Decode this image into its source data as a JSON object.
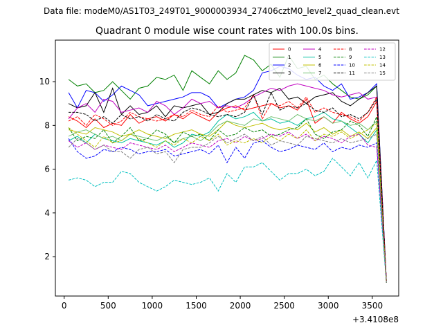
{
  "figure": {
    "suptitle": "Data file: modeM0/AS1T03_249T01_9000003934_27406cztM0_level2_quad_clean.evt"
  },
  "chart_data": {
    "type": "line",
    "title": "Quadrant 0 module wise count rates with 100.0s bins.",
    "xlabel": "",
    "ylabel": "",
    "x_offset_label": "+3.4108e8",
    "xlim": [
      -100,
      3800
    ],
    "ylim": [
      0.2,
      11.9
    ],
    "xticks": [
      0,
      500,
      1000,
      1500,
      2000,
      2500,
      3000,
      3500
    ],
    "yticks": [
      2,
      4,
      6,
      8,
      10
    ],
    "grid": false,
    "legend_position": "top-right",
    "legend_columns": 4,
    "x": [
      50,
      150,
      250,
      350,
      450,
      550,
      650,
      750,
      850,
      950,
      1050,
      1150,
      1250,
      1350,
      1450,
      1550,
      1650,
      1750,
      1850,
      1950,
      2050,
      2150,
      2250,
      2350,
      2450,
      2550,
      2650,
      2750,
      2850,
      2950,
      3050,
      3150,
      3250,
      3350,
      3450,
      3550,
      3660
    ],
    "series": [
      {
        "name": "0",
        "color": "#ff0000",
        "dash": "solid",
        "values": [
          8.4,
          8.2,
          7.9,
          8.3,
          7.9,
          8.1,
          8.0,
          8.5,
          8.1,
          8.3,
          8.4,
          8.2,
          8.5,
          8.3,
          8.6,
          8.4,
          8.2,
          8.6,
          8.8,
          8.9,
          8.7,
          8.8,
          8.9,
          9.0,
          8.8,
          8.9,
          8.7,
          9.2,
          8.1,
          8.4,
          8.1,
          8.6,
          8.3,
          8.1,
          8.4,
          9.1,
          0.9
        ]
      },
      {
        "name": "1",
        "color": "#008000",
        "dash": "solid",
        "values": [
          10.1,
          9.8,
          9.9,
          9.5,
          9.6,
          10.0,
          9.6,
          9.2,
          9.7,
          9.8,
          10.2,
          10.1,
          10.3,
          9.6,
          10.5,
          10.2,
          9.9,
          10.5,
          10.1,
          10.4,
          11.2,
          11.0,
          10.5,
          10.8,
          10.2,
          11.2,
          10.6,
          10.7,
          10.1,
          10.3,
          9.9,
          9.6,
          9.3,
          9.2,
          9.4,
          9.8,
          0.8
        ]
      },
      {
        "name": "2",
        "color": "#0000ff",
        "dash": "solid",
        "values": [
          9.5,
          8.8,
          9.6,
          9.5,
          9.1,
          9.4,
          9.8,
          9.6,
          9.4,
          8.9,
          9.0,
          9.1,
          9.2,
          9.3,
          9.5,
          9.5,
          9.3,
          8.8,
          9.0,
          9.2,
          9.3,
          9.6,
          10.4,
          10.5,
          10.7,
          10.6,
          10.3,
          10.1,
          10.2,
          9.8,
          9.6,
          9.9,
          9.2,
          9.3,
          9.5,
          9.9,
          0.9
        ]
      },
      {
        "name": "3",
        "color": "#000000",
        "dash": "solid",
        "values": [
          9.0,
          8.8,
          8.9,
          9.5,
          8.6,
          9.7,
          8.5,
          8.9,
          8.5,
          8.6,
          8.9,
          8.4,
          8.9,
          8.8,
          8.9,
          9.0,
          8.5,
          8.6,
          9.0,
          9.2,
          9.2,
          9.4,
          9.6,
          9.5,
          9.7,
          9.2,
          9.3,
          9.0,
          9.3,
          9.4,
          9.5,
          9.1,
          8.9,
          9.2,
          9.5,
          9.8,
          0.9
        ]
      },
      {
        "name": "4",
        "color": "#c000c0",
        "dash": "solid",
        "values": [
          8.3,
          8.8,
          9.0,
          8.6,
          9.2,
          9.1,
          8.6,
          8.7,
          8.8,
          8.6,
          9.1,
          8.9,
          8.5,
          8.8,
          9.2,
          9.0,
          9.1,
          8.8,
          8.9,
          8.8,
          9.0,
          9.3,
          9.5,
          9.7,
          9.6,
          9.8,
          9.9,
          9.8,
          9.7,
          9.6,
          9.4,
          9.3,
          9.4,
          9.5,
          9.2,
          9.3,
          0.9
        ]
      },
      {
        "name": "5",
        "color": "#00c0a0",
        "dash": "solid",
        "values": [
          7.3,
          7.5,
          7.2,
          7.6,
          7.4,
          7.3,
          7.2,
          7.4,
          7.3,
          7.2,
          7.1,
          7.3,
          7.0,
          7.2,
          7.6,
          7.5,
          7.7,
          8.2,
          8.5,
          8.3,
          8.4,
          8.6,
          8.2,
          8.3,
          8.1,
          8.2,
          8.0,
          8.3,
          8.4,
          8.6,
          8.3,
          8.2,
          7.9,
          7.6,
          7.2,
          7.8,
          0.8
        ]
      },
      {
        "name": "6",
        "color": "#c0c000",
        "dash": "solid",
        "values": [
          7.8,
          7.7,
          7.6,
          7.9,
          7.8,
          7.7,
          7.5,
          7.6,
          7.8,
          7.6,
          7.5,
          7.4,
          7.6,
          7.7,
          7.8,
          7.6,
          7.5,
          7.8,
          8.2,
          8.0,
          7.9,
          8.0,
          8.1,
          7.9,
          7.8,
          7.9,
          7.8,
          8.1,
          7.7,
          7.9,
          7.6,
          7.8,
          7.5,
          7.7,
          7.4,
          7.9,
          0.8
        ]
      },
      {
        "name": "7",
        "color": "#70c070",
        "dash": "solid",
        "values": [
          7.5,
          7.7,
          7.8,
          7.6,
          7.4,
          7.5,
          7.3,
          7.6,
          7.5,
          7.4,
          7.3,
          7.5,
          7.2,
          7.4,
          7.5,
          7.3,
          7.6,
          8.0,
          8.2,
          8.1,
          8.0,
          8.3,
          8.2,
          8.4,
          8.3,
          8.2,
          8.5,
          8.3,
          8.2,
          8.4,
          8.1,
          8.2,
          8.0,
          8.1,
          7.8,
          8.2,
          0.8
        ]
      },
      {
        "name": "8",
        "color": "#ff0000",
        "dash": "dashed",
        "values": [
          8.2,
          8.4,
          8.0,
          8.5,
          8.3,
          8.0,
          8.2,
          8.6,
          8.4,
          8.3,
          8.2,
          8.3,
          8.5,
          8.4,
          8.7,
          8.5,
          8.4,
          8.9,
          8.6,
          8.7,
          8.8,
          9.4,
          8.3,
          9.0,
          8.9,
          9.1,
          8.8,
          9.3,
          8.6,
          8.8,
          8.6,
          8.5,
          8.4,
          8.2,
          8.6,
          9.3,
          0.9
        ]
      },
      {
        "name": "9",
        "color": "#008000",
        "dash": "dashed",
        "values": [
          7.9,
          7.3,
          7.5,
          7.4,
          7.8,
          7.2,
          7.5,
          7.9,
          7.3,
          7.4,
          7.8,
          7.6,
          7.2,
          7.7,
          7.5,
          7.6,
          7.3,
          7.8,
          7.5,
          7.6,
          7.9,
          7.7,
          7.8,
          7.5,
          7.6,
          7.8,
          7.9,
          8.3,
          7.6,
          7.4,
          7.7,
          7.8,
          8.2,
          8.0,
          7.5,
          8.4,
          0.8
        ]
      },
      {
        "name": "10",
        "color": "#0000ff",
        "dash": "dashed",
        "values": [
          7.4,
          6.8,
          6.5,
          6.6,
          6.9,
          6.8,
          7.0,
          6.9,
          6.7,
          6.8,
          6.8,
          6.9,
          6.6,
          6.7,
          6.8,
          6.9,
          6.7,
          7.1,
          6.3,
          7.0,
          6.5,
          7.2,
          7.3,
          7.0,
          6.8,
          6.9,
          7.1,
          7.0,
          6.9,
          7.2,
          6.8,
          7.0,
          6.9,
          7.1,
          7.0,
          7.2,
          0.8
        ]
      },
      {
        "name": "11",
        "color": "#000000",
        "dash": "dashed",
        "values": [
          8.6,
          8.6,
          8.5,
          8.2,
          8.4,
          8.1,
          8.5,
          8.3,
          8.4,
          8.2,
          8.5,
          8.3,
          8.2,
          8.6,
          8.8,
          8.7,
          8.5,
          8.4,
          8.5,
          8.4,
          8.6,
          9.4,
          8.5,
          9.5,
          8.7,
          8.9,
          8.8,
          9.0,
          8.7,
          8.6,
          8.8,
          8.4,
          8.5,
          8.3,
          8.6,
          9.2,
          0.9
        ]
      },
      {
        "name": "12",
        "color": "#c000c0",
        "dash": "dashed",
        "values": [
          7.3,
          7.0,
          7.2,
          6.9,
          7.1,
          7.0,
          6.9,
          7.2,
          7.1,
          7.0,
          6.9,
          7.1,
          6.8,
          7.0,
          7.2,
          7.1,
          7.0,
          7.3,
          7.4,
          7.2,
          7.5,
          7.3,
          7.4,
          7.6,
          7.5,
          7.7,
          7.4,
          7.6,
          7.3,
          7.5,
          7.4,
          7.2,
          7.5,
          7.6,
          7.1,
          7.0,
          0.8
        ]
      },
      {
        "name": "13",
        "color": "#00c0c0",
        "dash": "dashed",
        "values": [
          5.5,
          5.6,
          5.5,
          5.2,
          5.4,
          5.4,
          5.9,
          5.8,
          5.4,
          5.2,
          5.0,
          5.2,
          5.5,
          5.4,
          5.3,
          5.4,
          5.6,
          5.0,
          5.8,
          5.4,
          6.1,
          6.1,
          6.3,
          5.9,
          5.5,
          5.8,
          5.8,
          6.0,
          5.7,
          5.9,
          6.5,
          6.1,
          5.7,
          6.3,
          5.6,
          6.4,
          0.8
        ]
      },
      {
        "name": "14",
        "color": "#c0c000",
        "dash": "dashed",
        "values": [
          7.9,
          7.6,
          7.3,
          7.0,
          7.5,
          7.2,
          7.3,
          7.6,
          7.4,
          7.2,
          7.0,
          7.3,
          7.1,
          7.4,
          7.2,
          7.5,
          7.3,
          7.6,
          7.1,
          7.3,
          7.2,
          7.4,
          7.2,
          7.5,
          7.3,
          7.6,
          7.4,
          7.8,
          7.3,
          7.6,
          7.5,
          7.7,
          7.4,
          7.6,
          7.8,
          8.1,
          0.8
        ]
      },
      {
        "name": "15",
        "color": "#808080",
        "dash": "dashed",
        "values": [
          7.0,
          7.4,
          7.2,
          6.9,
          7.1,
          6.8,
          6.8,
          6.5,
          6.9,
          7.0,
          6.7,
          6.8,
          6.3,
          6.9,
          7.0,
          7.0,
          7.2,
          7.5,
          7.2,
          7.4,
          7.6,
          7.3,
          7.5,
          7.1,
          7.3,
          7.2,
          7.1,
          7.5,
          7.4,
          7.3,
          7.2,
          7.4,
          7.2,
          7.3,
          7.4,
          7.6,
          0.8
        ]
      }
    ]
  }
}
